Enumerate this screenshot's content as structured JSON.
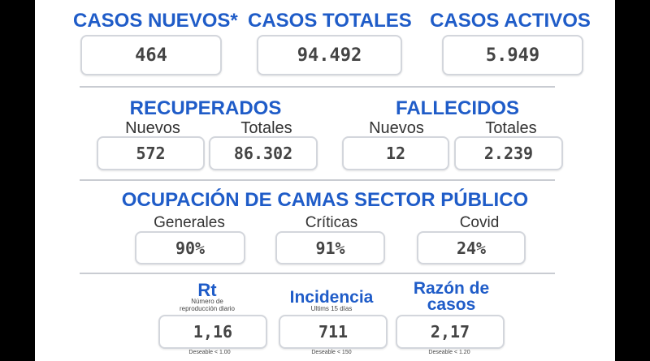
{
  "top": {
    "nuevos": {
      "title": "CASOS NUEVOS*",
      "value": "464"
    },
    "totales": {
      "title": "CASOS TOTALES",
      "value": "94.492"
    },
    "activos": {
      "title": "CASOS ACTIVOS",
      "value": "5.949"
    }
  },
  "recuperados": {
    "title": "RECUPERADOS",
    "nuevos_label": "Nuevos",
    "totales_label": "Totales",
    "nuevos": "572",
    "totales": "86.302"
  },
  "fallecidos": {
    "title": "FALLECIDOS",
    "nuevos_label": "Nuevos",
    "totales_label": "Totales",
    "nuevos": "12",
    "totales": "2.239"
  },
  "camas": {
    "title": "OCUPACIÓN DE CAMAS SECTOR PÚBLICO",
    "generales_label": "Generales",
    "generales": "90%",
    "criticas_label": "Críticas",
    "criticas": "91%",
    "covid_label": "Covid",
    "covid": "24%"
  },
  "rt": {
    "title": "Rt",
    "desc": "Número de reproducción diario",
    "value": "1,16",
    "target": "Deseable < 1.00"
  },
  "incidencia": {
    "title": "Incidencia",
    "desc": "Ultims 15 días",
    "value": "711",
    "target": "Deseable < 150"
  },
  "razon": {
    "title_1": "Razón de",
    "title_2": "casos",
    "value": "2,17",
    "target": "Deseable < 1.20"
  }
}
